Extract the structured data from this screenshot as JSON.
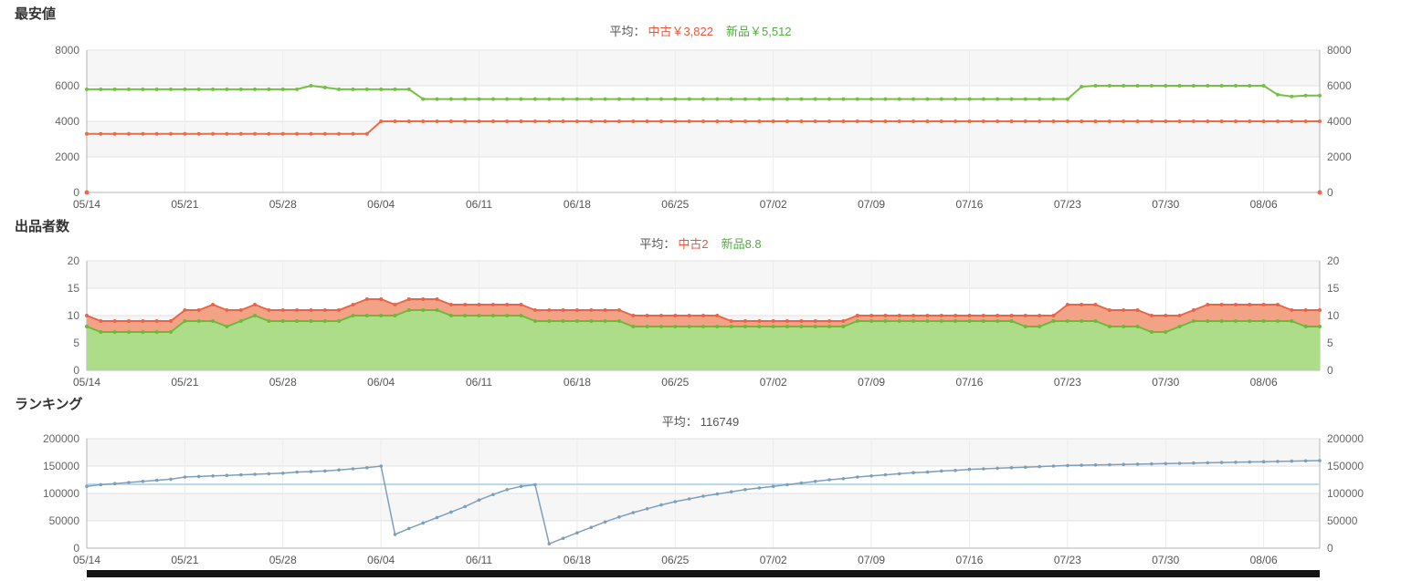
{
  "charts": [
    {
      "title": "最安値",
      "legend": {
        "prefix": "平均：",
        "items": [
          {
            "label": "中古￥3,822",
            "color": "#e8563a"
          },
          {
            "label": "新品￥5,512",
            "color": "#4fae3e"
          }
        ]
      },
      "chart_data": {
        "type": "line",
        "title": "最安値",
        "ymin": 0,
        "ymax": 8000,
        "yticks": [
          0,
          2000,
          4000,
          6000,
          8000
        ],
        "x_tick_labels": [
          "05/14",
          "05/21",
          "05/28",
          "06/04",
          "06/11",
          "06/18",
          "06/25",
          "07/02",
          "07/09",
          "07/16",
          "07/23",
          "07/30",
          "08/06"
        ],
        "x_tick_indices": [
          0,
          7,
          14,
          21,
          28,
          35,
          42,
          49,
          56,
          63,
          70,
          77,
          84
        ],
        "n_points": 89,
        "grid": true,
        "legend_position": "top-center",
        "series": [
          {
            "name": "新品",
            "color": "#74c044",
            "type": "line",
            "width": 2,
            "marker_r": 2,
            "values": [
              5800,
              5800,
              5800,
              5800,
              5800,
              5800,
              5800,
              5800,
              5800,
              5800,
              5800,
              5800,
              5800,
              5800,
              5800,
              5800,
              6000,
              5900,
              5800,
              5800,
              5800,
              5800,
              5800,
              5800,
              5250,
              5250,
              5250,
              5250,
              5250,
              5250,
              5250,
              5250,
              5250,
              5250,
              5250,
              5250,
              5250,
              5250,
              5250,
              5250,
              5250,
              5250,
              5250,
              5250,
              5250,
              5250,
              5250,
              5250,
              5250,
              5250,
              5250,
              5250,
              5250,
              5250,
              5250,
              5250,
              5250,
              5250,
              5250,
              5250,
              5250,
              5250,
              5250,
              5250,
              5250,
              5250,
              5250,
              5250,
              5250,
              5250,
              5250,
              5950,
              6000,
              6000,
              6000,
              6000,
              6000,
              6000,
              6000,
              6000,
              6000,
              6000,
              6000,
              6000,
              6000,
              5500,
              5400,
              5450,
              5450
            ]
          },
          {
            "name": "中古",
            "color": "#ef6a45",
            "type": "line",
            "width": 2,
            "marker_r": 2,
            "values": [
              3300,
              3300,
              3300,
              3300,
              3300,
              3300,
              3300,
              3300,
              3300,
              3300,
              3300,
              3300,
              3300,
              3300,
              3300,
              3300,
              3300,
              3300,
              3300,
              3300,
              3300,
              4000,
              4000,
              4000,
              4000,
              4000,
              4000,
              4000,
              4000,
              4000,
              4000,
              4000,
              4000,
              4000,
              4000,
              4000,
              4000,
              4000,
              4000,
              4000,
              4000,
              4000,
              4000,
              4000,
              4000,
              4000,
              4000,
              4000,
              4000,
              4000,
              4000,
              4000,
              4000,
              4000,
              4000,
              4000,
              4000,
              4000,
              4000,
              4000,
              4000,
              4000,
              4000,
              4000,
              4000,
              4000,
              4000,
              4000,
              4000,
              4000,
              4000,
              4000,
              4000,
              4000,
              4000,
              4000,
              4000,
              4000,
              4000,
              4000,
              4000,
              4000,
              4000,
              4000,
              4000,
              4000,
              4000,
              4000,
              4000
            ]
          }
        ],
        "zero_dots": {
          "color": "#ef6a45",
          "positions": [
            0,
            88
          ]
        }
      }
    },
    {
      "title": "出品者数",
      "legend": {
        "prefix": "平均：",
        "items": [
          {
            "label": "中古2",
            "color": "#e8563a"
          },
          {
            "label": "新品8.8",
            "color": "#4fae3e"
          }
        ]
      },
      "chart_data": {
        "type": "area",
        "title": "出品者数",
        "stacked": true,
        "ymin": 0,
        "ymax": 20,
        "yticks": [
          0,
          5,
          10,
          15,
          20
        ],
        "x_tick_labels": [
          "05/14",
          "05/21",
          "05/28",
          "06/04",
          "06/11",
          "06/18",
          "06/25",
          "07/02",
          "07/09",
          "07/16",
          "07/23",
          "07/30",
          "08/06"
        ],
        "x_tick_indices": [
          0,
          7,
          14,
          21,
          28,
          35,
          42,
          49,
          56,
          63,
          70,
          77,
          84
        ],
        "n_points": 89,
        "grid": true,
        "legend_position": "top-center",
        "series": [
          {
            "name": "新品",
            "color": "#6cb93a",
            "fill": "#aedd8a",
            "type": "area",
            "width": 2,
            "marker_r": 2,
            "values": [
              8,
              7,
              7,
              7,
              7,
              7,
              7,
              9,
              9,
              9,
              8,
              9,
              10,
              9,
              9,
              9,
              9,
              9,
              9,
              10,
              10,
              10,
              10,
              11,
              11,
              11,
              10,
              10,
              10,
              10,
              10,
              10,
              9,
              9,
              9,
              9,
              9,
              9,
              9,
              8,
              8,
              8,
              8,
              8,
              8,
              8,
              8,
              8,
              8,
              8,
              8,
              8,
              8,
              8,
              8,
              9,
              9,
              9,
              9,
              9,
              9,
              9,
              9,
              9,
              9,
              9,
              9,
              8,
              8,
              9,
              9,
              9,
              9,
              8,
              8,
              8,
              7,
              7,
              8,
              9,
              9,
              9,
              9,
              9,
              9,
              9,
              9,
              8,
              8
            ]
          },
          {
            "name": "中古",
            "color": "#e8654a",
            "fill": "#f2a285",
            "type": "area",
            "width": 2,
            "marker_r": 2,
            "values": [
              2,
              2,
              2,
              2,
              2,
              2,
              2,
              2,
              2,
              3,
              3,
              2,
              2,
              2,
              2,
              2,
              2,
              2,
              2,
              2,
              3,
              3,
              2,
              2,
              2,
              2,
              2,
              2,
              2,
              2,
              2,
              2,
              2,
              2,
              2,
              2,
              2,
              2,
              2,
              2,
              2,
              2,
              2,
              2,
              2,
              2,
              1,
              1,
              1,
              1,
              1,
              1,
              1,
              1,
              1,
              1,
              1,
              1,
              1,
              1,
              1,
              1,
              1,
              1,
              1,
              1,
              1,
              2,
              2,
              1,
              3,
              3,
              3,
              3,
              3,
              3,
              3,
              3,
              2,
              2,
              3,
              3,
              3,
              3,
              3,
              3,
              2,
              3,
              3
            ]
          }
        ]
      }
    },
    {
      "title": "ランキング",
      "legend": {
        "prefix": "平均：",
        "items": [
          {
            "label": "116749",
            "color": "#555555"
          }
        ]
      },
      "chart_data": {
        "type": "line",
        "title": "ランキング",
        "ymin": 0,
        "ymax": 200000,
        "yticks": [
          0,
          50000,
          100000,
          150000,
          200000
        ],
        "x_tick_labels": [
          "05/14",
          "05/21",
          "05/28",
          "06/04",
          "06/11",
          "06/18",
          "06/25",
          "07/02",
          "07/09",
          "07/16",
          "07/23",
          "07/30",
          "08/06"
        ],
        "x_tick_indices": [
          0,
          7,
          14,
          21,
          28,
          35,
          42,
          49,
          56,
          63,
          70,
          77,
          84
        ],
        "n_points": 89,
        "grid": true,
        "legend_position": "top-center",
        "avg_line": {
          "value": 116749,
          "color": "#bcd8ec"
        },
        "series": [
          {
            "name": "ランキング",
            "color": "#7e9fbc",
            "type": "line",
            "width": 1.5,
            "marker_r": 1.8,
            "values": [
              113000,
              116000,
              118000,
              120000,
              122000,
              124000,
              126000,
              130000,
              131000,
              132000,
              133000,
              134000,
              135000,
              136000,
              137000,
              139000,
              140000,
              141000,
              143000,
              145000,
              147000,
              150000,
              25000,
              36000,
              46000,
              56000,
              66000,
              76000,
              88000,
              98000,
              107000,
              113000,
              116000,
              8000,
              18000,
              28000,
              38000,
              48000,
              57000,
              65000,
              72000,
              79000,
              85000,
              90000,
              95000,
              99000,
              103000,
              107000,
              110000,
              113000,
              116000,
              119000,
              122000,
              125000,
              127000,
              130000,
              132000,
              134000,
              136000,
              138000,
              139000,
              141000,
              142000,
              144000,
              145000,
              146000,
              147000,
              148000,
              149000,
              150000,
              151000,
              151500,
              152000,
              152500,
              153000,
              153500,
              154000,
              154500,
              155000,
              155500,
              156000,
              156500,
              157000,
              157500,
              158000,
              158500,
              159000,
              159500,
              160000
            ]
          }
        ]
      }
    }
  ],
  "colors": {
    "band_gray": "#f6f6f6",
    "band_white": "#ffffff",
    "grid_line": "#e2e2e2",
    "axis_line": "#b5b5b5",
    "axis_text": "#666666",
    "legend_text": "#555555"
  }
}
